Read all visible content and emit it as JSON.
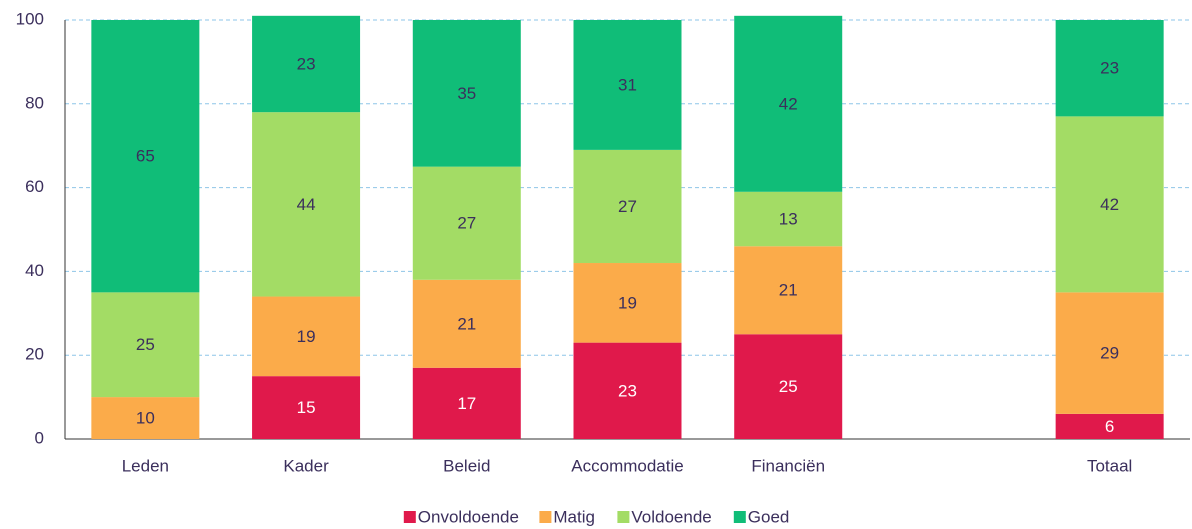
{
  "chart_data": {
    "type": "stacked_bar",
    "categories": [
      "Leden",
      "Kader",
      "Beleid",
      "Accommodatie",
      "Financiën",
      null,
      "Totaal"
    ],
    "series": [
      {
        "name": "Onvoldoende",
        "color": "#e0194b",
        "values": [
          null,
          15,
          17,
          23,
          25,
          null,
          6
        ]
      },
      {
        "name": "Matig",
        "color": "#fbab4a",
        "values": [
          10,
          19,
          21,
          19,
          21,
          null,
          29
        ]
      },
      {
        "name": "Voldoende",
        "color": "#a3dc65",
        "values": [
          25,
          44,
          27,
          27,
          13,
          null,
          42
        ]
      },
      {
        "name": "Goed",
        "color": "#10bd78",
        "values": [
          65,
          23,
          35,
          31,
          42,
          null,
          23
        ]
      }
    ],
    "ylim": [
      0,
      100
    ],
    "yticks": [
      0,
      20,
      40,
      60,
      80,
      100
    ],
    "grid": true,
    "legend": "bottom"
  }
}
